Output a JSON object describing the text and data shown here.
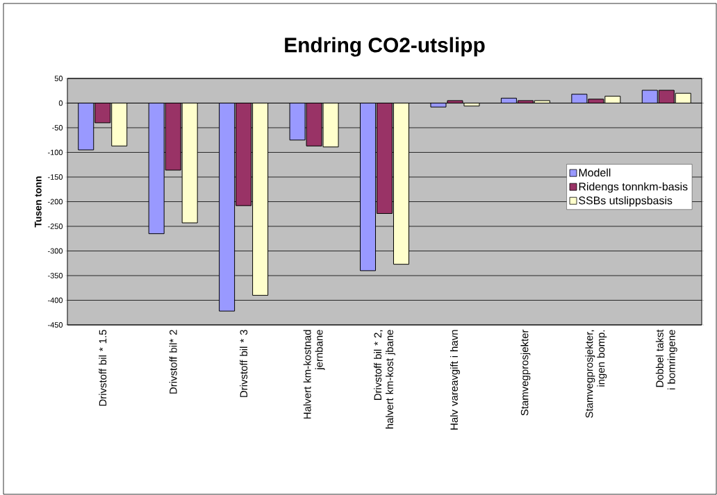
{
  "chart_data": {
    "type": "bar",
    "title": "Endring CO2-utslipp",
    "ylabel": "Tusen tonn",
    "categories": [
      "Drivstoff bil * 1.5",
      "Drivstoff bil* 2",
      "Drivstoff bil * 3",
      "Halvert km-kostnad jernbane",
      "Drivstoff bil * 2, halvert km-kost jbane",
      "Halv vareavgift i havn",
      "Stamvegprosjekter",
      "Stamvegprosjekter, ingen bomp.",
      "Dobbel takst i bomringene"
    ],
    "series": [
      {
        "name": "Modell",
        "color": "#9999ff",
        "values": [
          -95,
          -265,
          -422,
          -75,
          -340,
          -8,
          10,
          18,
          26
        ]
      },
      {
        "name": "Ridengs tonnkm-basis",
        "color": "#993366",
        "values": [
          -40,
          -136,
          -208,
          -87,
          -224,
          5,
          5,
          8,
          26
        ]
      },
      {
        "name": "SSBs utslippsbasis",
        "color": "#ffffcc",
        "values": [
          -87,
          -243,
          -390,
          -89,
          -327,
          -6,
          5,
          14,
          20
        ]
      }
    ],
    "ylim": [
      -450,
      50
    ],
    "yticks": [
      -450,
      -400,
      -350,
      -300,
      -250,
      -200,
      -150,
      -100,
      -50,
      0,
      50
    ],
    "grid": "y",
    "legend": "right"
  }
}
